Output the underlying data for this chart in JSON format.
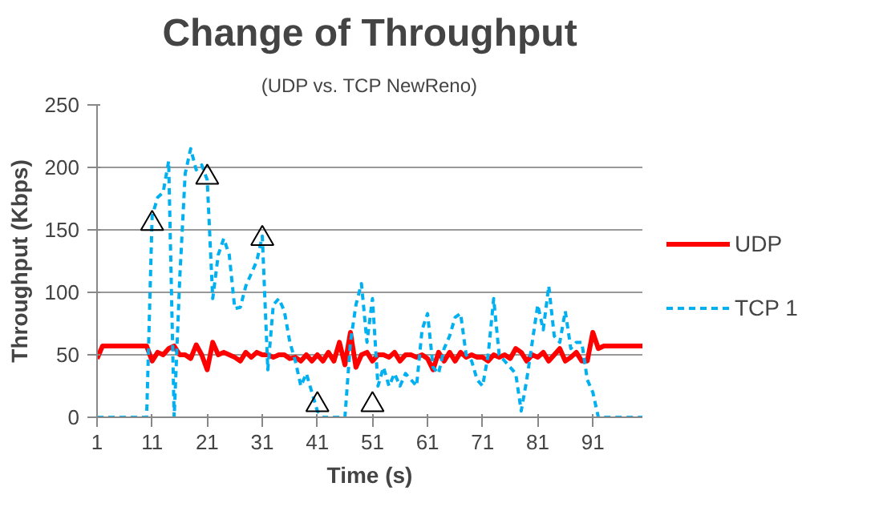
{
  "chart_data": {
    "type": "line",
    "title": "Change of Throughput",
    "subtitle": "(UDP vs. TCP NewReno)",
    "xlabel": "Time (s)",
    "ylabel": "Throughput (Kbps)",
    "x": [
      1,
      2,
      3,
      4,
      5,
      6,
      7,
      8,
      9,
      10,
      11,
      12,
      13,
      14,
      15,
      16,
      17,
      18,
      19,
      20,
      21,
      22,
      23,
      24,
      25,
      26,
      27,
      28,
      29,
      30,
      31,
      32,
      33,
      34,
      35,
      36,
      37,
      38,
      39,
      40,
      41,
      42,
      43,
      44,
      45,
      46,
      47,
      48,
      49,
      50,
      51,
      52,
      53,
      54,
      55,
      56,
      57,
      58,
      59,
      60,
      61,
      62,
      63,
      64,
      65,
      66,
      67,
      68,
      69,
      70,
      71,
      72,
      73,
      74,
      75,
      76,
      77,
      78,
      79,
      80,
      81,
      82,
      83,
      84,
      85,
      86,
      87,
      88,
      89,
      90,
      91,
      92,
      93,
      94,
      95,
      96,
      97,
      98,
      99,
      100
    ],
    "xlim": [
      1,
      100
    ],
    "xticks": [
      1,
      11,
      21,
      31,
      41,
      51,
      61,
      71,
      81,
      91
    ],
    "ylim": [
      0,
      250
    ],
    "yticks": [
      0,
      50,
      100,
      150,
      200,
      250
    ],
    "grid": "y",
    "legend": "right",
    "series": [
      {
        "name": "UDP",
        "color": "#ff0000",
        "line_style": "solid",
        "values": [
          47,
          57,
          57,
          57,
          57,
          57,
          57,
          57,
          57,
          57,
          45,
          52,
          50,
          55,
          57,
          50,
          50,
          47,
          58,
          50,
          38,
          60,
          50,
          52,
          50,
          48,
          45,
          52,
          48,
          52,
          50,
          50,
          48,
          50,
          50,
          47,
          48,
          45,
          50,
          45,
          50,
          45,
          52,
          45,
          60,
          42,
          68,
          40,
          50,
          52,
          45,
          50,
          50,
          48,
          52,
          45,
          50,
          50,
          48,
          50,
          47,
          38,
          52,
          45,
          52,
          45,
          52,
          48,
          50,
          48,
          48,
          45,
          50,
          48,
          50,
          47,
          55,
          52,
          45,
          50,
          48,
          52,
          45,
          50,
          55,
          45,
          48,
          52,
          45,
          45,
          68,
          55,
          57,
          57,
          57,
          57,
          57,
          57,
          57,
          57
        ]
      },
      {
        "name": "TCP 1",
        "color": "#00b0f0",
        "line_style": "dashed",
        "values": [
          0,
          0,
          0,
          0,
          0,
          0,
          0,
          0,
          0,
          0,
          161,
          176,
          180,
          205,
          0,
          110,
          195,
          215,
          198,
          202,
          190,
          95,
          130,
          143,
          130,
          87,
          88,
          105,
          115,
          125,
          145,
          38,
          90,
          95,
          85,
          60,
          45,
          25,
          35,
          20,
          5,
          0,
          0,
          0,
          0,
          0,
          60,
          90,
          107,
          60,
          95,
          25,
          40,
          25,
          35,
          25,
          35,
          30,
          25,
          70,
          83,
          40,
          35,
          55,
          65,
          80,
          83,
          50,
          45,
          30,
          25,
          50,
          95,
          50,
          45,
          40,
          35,
          5,
          30,
          60,
          90,
          70,
          105,
          65,
          60,
          85,
          55,
          60,
          60,
          30,
          20,
          0,
          0,
          0,
          0,
          0,
          0,
          0,
          0,
          0
        ]
      },
      {
        "type": "scatter",
        "marker": "triangle",
        "color": "#000000",
        "x": [
          11,
          21,
          31,
          41,
          51
        ],
        "values": [
          155,
          192,
          143,
          10,
          10
        ]
      }
    ]
  }
}
